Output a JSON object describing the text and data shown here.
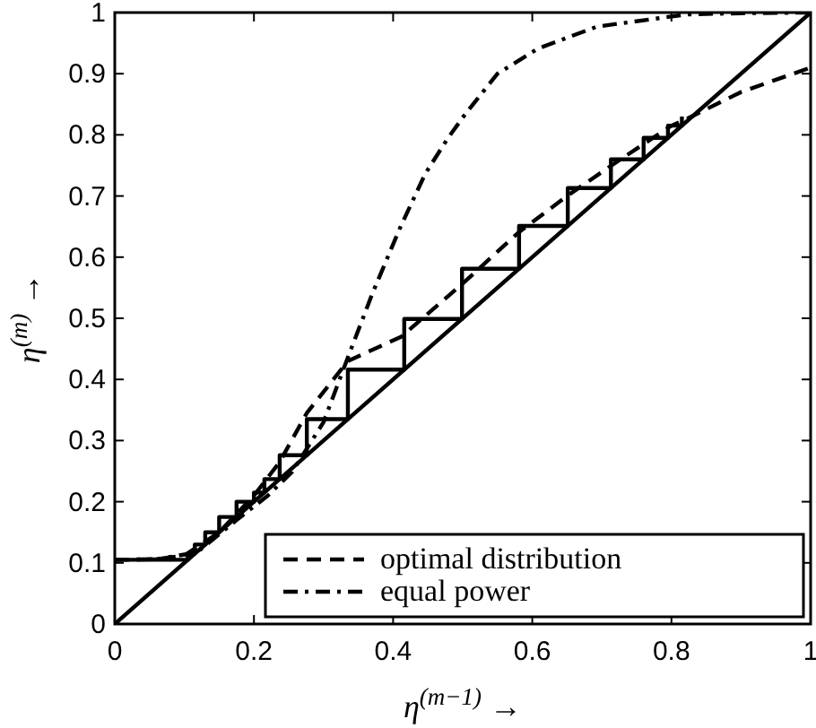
{
  "chart_data": {
    "type": "line",
    "xlabel": "η$^{(m−1)}$ →",
    "ylabel": "η$^{(m)}$ →",
    "xlim": [
      0,
      1
    ],
    "ylim": [
      0,
      1
    ],
    "xticks": [
      0,
      0.2,
      0.4,
      0.6,
      0.8,
      1
    ],
    "yticks": [
      0,
      0.1,
      0.2,
      0.3,
      0.4,
      0.5,
      0.6,
      0.7,
      0.8,
      0.9,
      1
    ],
    "grid": false,
    "legend": "bottom right",
    "series": [
      {
        "color": "#000000",
        "line_style": "solid",
        "x": [
          0,
          1
        ],
        "values": [
          0,
          1
        ]
      },
      {
        "color": "#000000",
        "line_style": "solid",
        "x": [
          0,
          0.105,
          0.105,
          0.115,
          0.115,
          0.13,
          0.13,
          0.15,
          0.15,
          0.175,
          0.175,
          0.2,
          0.2,
          0.215,
          0.215,
          0.237,
          0.237,
          0.276,
          0.276,
          0.335,
          0.335,
          0.416,
          0.416,
          0.499,
          0.499,
          0.581,
          0.581,
          0.651,
          0.651,
          0.713,
          0.713,
          0.76,
          0.76,
          0.795,
          0.795,
          0.815,
          0.815
        ],
        "values": [
          0.105,
          0.105,
          0.115,
          0.115,
          0.13,
          0.13,
          0.15,
          0.15,
          0.175,
          0.175,
          0.2,
          0.2,
          0.215,
          0.215,
          0.237,
          0.237,
          0.276,
          0.276,
          0.335,
          0.335,
          0.416,
          0.416,
          0.499,
          0.499,
          0.581,
          0.581,
          0.651,
          0.651,
          0.713,
          0.713,
          0.76,
          0.76,
          0.795,
          0.795,
          0.815,
          0.815,
          0.83
        ]
      },
      {
        "name": "optimal distribution",
        "color": "#000000",
        "line_style": "dashed",
        "x": [
          0,
          0.06,
          0.1,
          0.15,
          0.2,
          0.237,
          0.276,
          0.335,
          0.412,
          0.503,
          0.58,
          0.65,
          0.714,
          0.76,
          0.8,
          0.82,
          0.9,
          1
        ],
        "values": [
          0.105,
          0.106,
          0.112,
          0.15,
          0.21,
          0.265,
          0.345,
          0.43,
          0.47,
          0.56,
          0.64,
          0.7,
          0.75,
          0.785,
          0.815,
          0.825,
          0.87,
          0.91
        ]
      },
      {
        "name": "equal power",
        "color": "#000000",
        "line_style": "dashdot",
        "x": [
          0,
          0.06,
          0.118,
          0.175,
          0.22,
          0.255,
          0.3,
          0.333,
          0.37,
          0.41,
          0.446,
          0.479,
          0.505,
          0.55,
          0.608,
          0.693,
          0.822,
          0.9,
          1
        ],
        "values": [
          0.105,
          0.106,
          0.117,
          0.17,
          0.21,
          0.249,
          0.33,
          0.43,
          0.54,
          0.648,
          0.736,
          0.795,
          0.836,
          0.9,
          0.941,
          0.977,
          0.997,
          0.999,
          1
        ]
      }
    ]
  }
}
